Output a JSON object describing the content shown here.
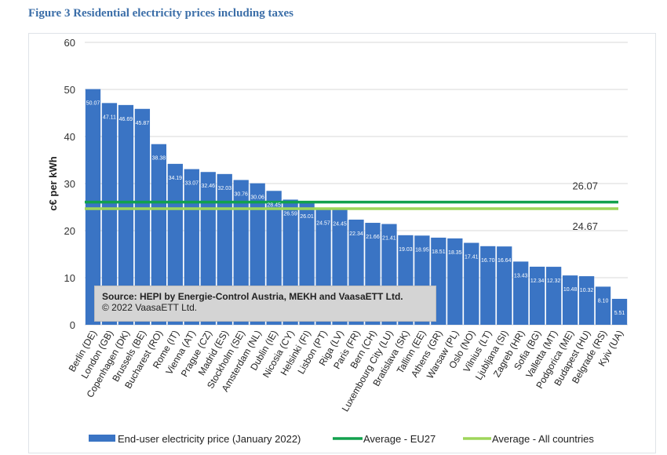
{
  "figure_title": "Figure 3 Residential electricity prices including taxes",
  "source": {
    "line1": "Source: HEPI by Energie-Control Austria, MEKH and VaasaETT Ltd.",
    "line2": "© 2022 VaasaETT Ltd."
  },
  "colors": {
    "bar": "#3a74c4",
    "eu27": "#12a14d",
    "all": "#9ed55a",
    "grid": "#d9d9d9"
  },
  "chart_data": {
    "type": "bar",
    "title": "Figure 3 Residential electricity prices including taxes",
    "ylabel": "c€ per kWh",
    "xlabel": "",
    "ylim": [
      0,
      60
    ],
    "yticks": [
      0,
      10,
      20,
      30,
      40,
      50,
      60
    ],
    "grid": true,
    "categories": [
      "Berlin (DE)",
      "London (GB)",
      "Copenhagen (DK)",
      "Brussels (BE)",
      "Bucharest (RO)",
      "Rome (IT)",
      "Vienna (AT)",
      "Prague (CZ)",
      "Madrid (ES)",
      "Stockholm (SE)",
      "Amsterdam (NL)",
      "Dublin (IE)",
      "Nicosia (CY)",
      "Helsinki (FI)",
      "Lisbon (PT)",
      "Riga (LV)",
      "Paris (FR)",
      "Bern (CH)",
      "Luxembourg City (LU)",
      "Bratislava (SK)",
      "Tallinn (EE)",
      "Athens (GR)",
      "Warsaw (PL)",
      "Oslo (NO)",
      "Vilnius (LT)",
      "Ljubljana (SI)",
      "Zagreb (HR)",
      "Sofia (BG)",
      "Valletta (MT)",
      "Podgorica (ME)",
      "Budapest (HU)",
      "Belgrade (RS)",
      "Kyiv (UA)"
    ],
    "series": [
      {
        "name": "End-user electricity price (January 2022)",
        "values": [
          50.07,
          47.11,
          46.69,
          45.87,
          38.38,
          34.19,
          33.07,
          32.46,
          32.03,
          30.76,
          30.06,
          28.45,
          26.59,
          26.01,
          24.57,
          24.45,
          22.34,
          21.66,
          21.41,
          19.03,
          18.95,
          18.51,
          18.35,
          17.41,
          16.7,
          16.64,
          13.43,
          12.34,
          12.32,
          10.48,
          10.32,
          8.1,
          5.51
        ],
        "labels": [
          "50.07",
          "47.11",
          "46.69",
          "45.87",
          "38.38",
          "34.19",
          "33.07",
          "32.46",
          "32.03",
          "30.76",
          "30.06",
          "28.45",
          "26.59",
          "26.01",
          "24.57",
          "24.45",
          "22.34",
          "21.66",
          "21.41",
          "19.03",
          "18.95",
          "18.51",
          "18.35",
          "17.41",
          "16.70",
          "16.64",
          "13.43",
          "12.34",
          "12.32",
          "10.48",
          "10.32",
          "8.10",
          "5.51"
        ]
      }
    ],
    "reference_lines": [
      {
        "name": "Average - EU27",
        "value": 26.07,
        "label": "26.07"
      },
      {
        "name": "Average - All countries",
        "value": 24.67,
        "label": "24.67"
      }
    ],
    "legend": {
      "placement": "bottom"
    }
  }
}
